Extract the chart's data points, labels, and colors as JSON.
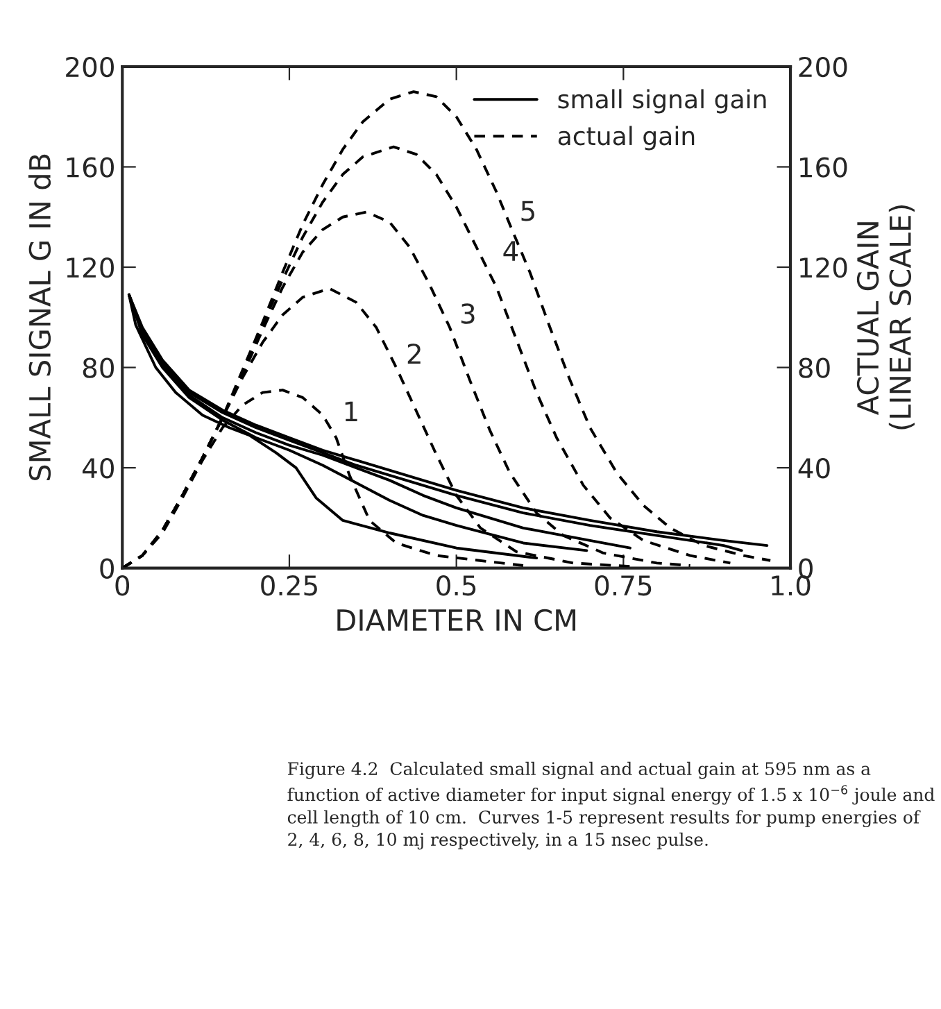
{
  "chart_data": {
    "type": "line",
    "xlabel": "DIAMETER IN CM",
    "ylabel": "SMALL SIGNAL G IN dB",
    "y2label": "ACTUAL GAIN\n(LINEAR SCALE)",
    "xlim": [
      0,
      1.0
    ],
    "xticks": [
      0,
      0.25,
      0.5,
      0.75,
      {
        "value": 1.0,
        "label": "1.0"
      }
    ],
    "ylim": [
      0,
      200
    ],
    "yticks": [
      0,
      40,
      80,
      120,
      160,
      200
    ],
    "y2lim": [
      0,
      200
    ],
    "y2ticks": [
      0,
      40,
      80,
      120,
      160,
      200
    ],
    "grid": false,
    "legend": "top right",
    "marker": "none",
    "series": [
      {
        "name": "small signal gain",
        "color": "#000000",
        "line_style": "solid",
        "x": [
          0.01,
          0.02,
          0.05,
          0.08,
          0.12,
          0.16,
          0.19,
          0.23,
          0.26,
          0.29,
          0.33,
          0.4,
          0.5,
          0.62
        ],
        "values": [
          109,
          97,
          80,
          70,
          61,
          56,
          53,
          46,
          40,
          28,
          19,
          14,
          8,
          4
        ]
      },
      {
        "color": "#000000",
        "line_style": "solid",
        "x": [
          0.01,
          0.03,
          0.06,
          0.1,
          0.15,
          0.2,
          0.25,
          0.3,
          0.35,
          0.4,
          0.45,
          0.5,
          0.6,
          0.695
        ],
        "values": [
          109,
          93,
          80,
          68,
          59,
          52,
          47,
          41,
          34,
          27,
          21,
          17,
          10,
          7
        ]
      },
      {
        "color": "#000000",
        "line_style": "solid",
        "x": [
          0.01,
          0.03,
          0.06,
          0.1,
          0.15,
          0.2,
          0.25,
          0.3,
          0.35,
          0.4,
          0.45,
          0.5,
          0.6,
          0.7,
          0.76
        ],
        "values": [
          109,
          94,
          81,
          69,
          60,
          54,
          49,
          45,
          40,
          35,
          29,
          24,
          16,
          11,
          8
        ]
      },
      {
        "color": "#000000",
        "line_style": "solid",
        "x": [
          0.01,
          0.03,
          0.06,
          0.1,
          0.15,
          0.2,
          0.25,
          0.3,
          0.35,
          0.4,
          0.45,
          0.5,
          0.6,
          0.7,
          0.8,
          0.9,
          0.927
        ],
        "values": [
          109,
          95,
          82,
          70,
          62,
          56,
          51,
          46,
          41,
          37,
          33,
          29,
          22,
          17,
          13,
          9,
          7
        ]
      },
      {
        "color": "#000000",
        "line_style": "solid",
        "x": [
          0.01,
          0.03,
          0.06,
          0.1,
          0.15,
          0.2,
          0.25,
          0.3,
          0.35,
          0.4,
          0.45,
          0.5,
          0.6,
          0.7,
          0.8,
          0.9,
          0.965
        ],
        "values": [
          109,
          96,
          83,
          71,
          63,
          57,
          52,
          47,
          43,
          39,
          35,
          31,
          24,
          19,
          14.5,
          11,
          9
        ]
      },
      {
        "name": "actual gain",
        "color": "#000000",
        "line_style": "dashed",
        "axis": "y2",
        "x": [
          0,
          0.03,
          0.06,
          0.09,
          0.12,
          0.15,
          0.18,
          0.21,
          0.24,
          0.27,
          0.3,
          0.32,
          0.34,
          0.37,
          0.41,
          0.47,
          0.6
        ],
        "values": [
          0,
          5,
          14,
          28,
          43,
          56,
          65,
          70,
          71,
          68,
          61,
          52,
          37,
          19,
          10,
          5,
          1
        ]
      },
      {
        "color": "#000000",
        "line_style": "dashed",
        "axis": "y2",
        "x": [
          0,
          0.03,
          0.06,
          0.09,
          0.12,
          0.15,
          0.18,
          0.21,
          0.24,
          0.27,
          0.31,
          0.35,
          0.38,
          0.41,
          0.467,
          0.5,
          0.536,
          0.59,
          0.675,
          0.77
        ],
        "values": [
          0,
          5,
          15,
          29,
          44,
          60,
          76,
          90,
          101,
          108,
          111.5,
          106,
          96,
          80,
          47,
          29,
          16,
          6.5,
          2,
          0.5
        ]
      },
      {
        "color": "#000000",
        "line_style": "dashed",
        "axis": "y2",
        "x": [
          0,
          0.03,
          0.06,
          0.09,
          0.12,
          0.15,
          0.18,
          0.21,
          0.24,
          0.27,
          0.3,
          0.33,
          0.365,
          0.4,
          0.43,
          0.46,
          0.49,
          0.52,
          0.55,
          0.58,
          0.62,
          0.66,
          0.72,
          0.8,
          0.85
        ],
        "values": [
          0,
          5,
          15,
          29,
          44,
          60,
          77,
          95,
          112,
          126,
          135,
          140,
          142,
          138,
          128,
          113,
          96,
          75,
          55,
          38,
          22,
          13,
          6,
          2,
          1
        ]
      },
      {
        "color": "#000000",
        "line_style": "dashed",
        "axis": "y2",
        "x": [
          0,
          0.03,
          0.06,
          0.09,
          0.12,
          0.15,
          0.18,
          0.21,
          0.24,
          0.27,
          0.3,
          0.33,
          0.36,
          0.406,
          0.44,
          0.47,
          0.5,
          0.53,
          0.56,
          0.59,
          0.62,
          0.65,
          0.69,
          0.73,
          0.78,
          0.85,
          0.91
        ],
        "values": [
          0,
          5,
          15,
          29,
          44,
          60,
          78,
          97,
          115,
          132,
          146,
          157,
          164,
          168,
          165,
          157,
          144,
          128,
          112,
          91,
          70,
          52,
          33,
          20,
          11,
          5,
          2
        ]
      },
      {
        "color": "#000000",
        "line_style": "dashed",
        "axis": "y2",
        "x": [
          0,
          0.03,
          0.06,
          0.09,
          0.12,
          0.15,
          0.18,
          0.21,
          0.24,
          0.27,
          0.3,
          0.33,
          0.36,
          0.4,
          0.436,
          0.47,
          0.5,
          0.53,
          0.56,
          0.58,
          0.61,
          0.64,
          0.67,
          0.7,
          0.74,
          0.78,
          0.82,
          0.87,
          0.93,
          0.97
        ],
        "values": [
          0,
          5,
          15,
          29,
          44,
          60,
          79,
          98,
          118,
          137,
          153,
          167,
          178,
          187,
          190,
          188,
          180,
          167,
          150,
          137,
          118,
          96,
          75,
          56,
          38,
          25,
          16,
          9,
          5,
          3
        ]
      }
    ],
    "annotations": [
      {
        "text": "1",
        "x": 0.315,
        "y": 57
      },
      {
        "text": "2",
        "x": 0.41,
        "y": 80
      },
      {
        "text": "3",
        "x": 0.49,
        "y": 96
      },
      {
        "text": "4",
        "x": 0.554,
        "y": 121
      },
      {
        "text": "5",
        "x": 0.58,
        "y": 137
      },
      "Figure 4.2  Calculated small signal and actual gain at 595 nm as a function of active diameter for input signal energy of 1.5 x 10$^{−6}$ joule and cell length of 10 cm.  Curves 1-5 represent results for pump energies of 2, 4, 6, 8, 10 mj respectively, in a 15 nsec pulse."
    ]
  }
}
